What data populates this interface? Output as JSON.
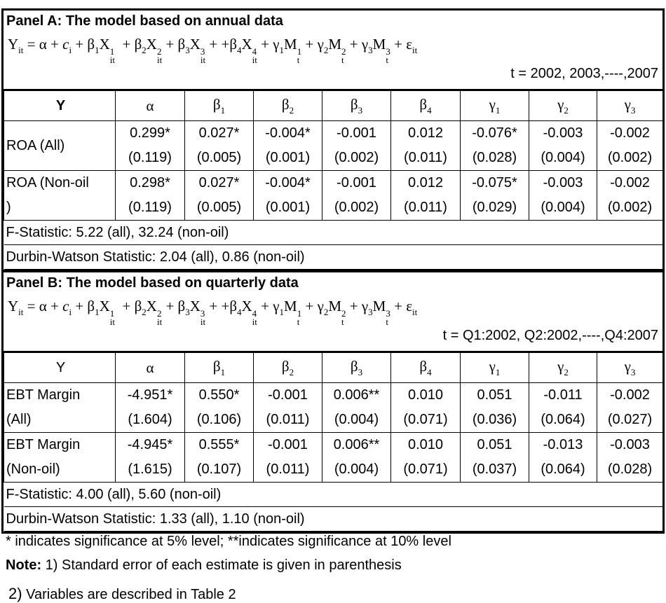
{
  "panels": [
    {
      "title": "Panel A: The model based on annual data",
      "equation": [
        {
          "base": "Y",
          "sub": "it"
        },
        {
          "base": " = α + "
        },
        {
          "base": "c",
          "sub": "i"
        },
        {
          "base": " + "
        },
        {
          "base": "β",
          "sub": "1"
        },
        {
          "base": "X",
          "sup": "1",
          "sub": "it"
        },
        {
          "base": "  + "
        },
        {
          "base": "β",
          "sub": "2"
        },
        {
          "base": "X",
          "sup": "2",
          "sub": "it"
        },
        {
          "base": " + "
        },
        {
          "base": "β",
          "sub": "3"
        },
        {
          "base": "X",
          "sup": "3",
          "sub": "it"
        },
        {
          "base": " + +"
        },
        {
          "base": "β",
          "sub": "4"
        },
        {
          "base": "X",
          "sup": "4",
          "sub": "it"
        },
        {
          "base": " + "
        },
        {
          "base": "γ",
          "sub": "1"
        },
        {
          "base": "M",
          "sup": "1",
          "sub": "t"
        },
        {
          "base": " + "
        },
        {
          "base": "γ",
          "sub": "2"
        },
        {
          "base": "M",
          "sup": "2",
          "sub": "t"
        },
        {
          "base": " + "
        },
        {
          "base": "γ",
          "sub": "3"
        },
        {
          "base": "M",
          "sup": "3",
          "sub": "t"
        },
        {
          "base": " + "
        },
        {
          "base": "ε",
          "sub": "it"
        }
      ],
      "period": "t = 2002, 2003,----,2007",
      "header": [
        {
          "base": "Y"
        },
        {
          "base": "α"
        },
        {
          "base": "β",
          "sub": "1"
        },
        {
          "base": "β",
          "sub": "2"
        },
        {
          "base": "β",
          "sub": "3"
        },
        {
          "base": "β",
          "sub": "4"
        },
        {
          "base": "γ",
          "sub": "1"
        },
        {
          "base": "γ",
          "sub": "2"
        },
        {
          "base": "γ",
          "sub": "3"
        }
      ],
      "rows": [
        {
          "label": [
            "ROA (All)"
          ],
          "estimates": [
            "0.299*",
            "0.027*",
            "-0.004*",
            "-0.001",
            "0.012",
            "-0.076*",
            "-0.003",
            "-0.002"
          ],
          "std_errors": [
            "(0.119)",
            "(0.005)",
            "(0.001)",
            "(0.002)",
            "(0.011)",
            "(0.028)",
            "(0.004)",
            "(0.002)"
          ]
        },
        {
          "label": [
            "ROA (Non-oil",
            ")"
          ],
          "estimates": [
            "0.298*",
            "0.027*",
            "-0.004*",
            "-0.001",
            "0.012",
            "-0.075*",
            "-0.003",
            "-0.002"
          ],
          "std_errors": [
            "(0.119)",
            "(0.005)",
            "(0.001)",
            "(0.002)",
            "(0.011)",
            "(0.029)",
            "(0.004)",
            "(0.002)"
          ]
        }
      ],
      "stats": [
        "F-Statistic: 5.22 (all), 32.24 (non-oil)",
        "Durbin-Watson Statistic: 2.04 (all), 0.86 (non-oil)"
      ]
    },
    {
      "title": "Panel B: The model based on quarterly data",
      "equation": [
        {
          "base": "Y",
          "sub": "it"
        },
        {
          "base": " = α + "
        },
        {
          "base": "c",
          "sub": "i"
        },
        {
          "base": " + "
        },
        {
          "base": "β",
          "sub": "1"
        },
        {
          "base": "X",
          "sup": "1",
          "sub": "it"
        },
        {
          "base": "  + "
        },
        {
          "base": "β",
          "sub": "2"
        },
        {
          "base": "X",
          "sup": "2",
          "sub": "it"
        },
        {
          "base": " + "
        },
        {
          "base": "β",
          "sub": "3"
        },
        {
          "base": "X",
          "sup": "3",
          "sub": "it"
        },
        {
          "base": " + +"
        },
        {
          "base": "β",
          "sub": "4"
        },
        {
          "base": "X",
          "sup": "4",
          "sub": "it"
        },
        {
          "base": " + "
        },
        {
          "base": "γ",
          "sub": "1"
        },
        {
          "base": "M",
          "sup": "1",
          "sub": "t"
        },
        {
          "base": " + "
        },
        {
          "base": "γ",
          "sub": "2"
        },
        {
          "base": "M",
          "sup": "2",
          "sub": "t"
        },
        {
          "base": " + "
        },
        {
          "base": "γ",
          "sub": "3"
        },
        {
          "base": "M",
          "sup": "3",
          "sub": "t"
        },
        {
          "base": " + "
        },
        {
          "base": "ε",
          "sub": "it"
        }
      ],
      "period": "t = Q1:2002, Q2:2002,----,Q4:2007",
      "header": [
        {
          "base": "Y"
        },
        {
          "base": "α"
        },
        {
          "base": "β",
          "sub": "1"
        },
        {
          "base": "β",
          "sub": "2"
        },
        {
          "base": "β",
          "sub": "3"
        },
        {
          "base": "β",
          "sub": "4"
        },
        {
          "base": "γ",
          "sub": "1"
        },
        {
          "base": "γ",
          "sub": "2"
        },
        {
          "base": "γ",
          "sub": "3"
        }
      ],
      "rows": [
        {
          "label": [
            "EBT Margin",
            "(All)"
          ],
          "estimates": [
            "-4.951*",
            "0.550*",
            "-0.001",
            "0.006**",
            "0.010",
            "0.051",
            "-0.011",
            "-0.002"
          ],
          "std_errors": [
            "(1.604)",
            "(0.106)",
            "(0.011)",
            "(0.004)",
            "(0.071)",
            "(0.036)",
            "(0.064)",
            "(0.027)"
          ]
        },
        {
          "label": [
            "EBT Margin",
            "(Non-oil)"
          ],
          "estimates": [
            "-4.945*",
            "0.555*",
            "-0.001",
            "0.006**",
            "0.010",
            "0.051",
            "-0.013",
            "-0.003"
          ],
          "std_errors": [
            "(1.615)",
            "(0.107)",
            "(0.011)",
            "(0.004)",
            "(0.071)",
            "(0.037)",
            "(0.064)",
            "(0.028)"
          ]
        }
      ],
      "stats": [
        "F-Statistic: 4.00 (all), 5.60 (non-oil)",
        "Durbin-Watson Statistic: 1.33 (all), 1.10 (non-oil)"
      ]
    }
  ],
  "footnotes": {
    "significance": "* indicates significance at 5% level; **indicates significance at 10% level",
    "note_label": "Note:",
    "note_1": "1) Standard error of each estimate is given in parenthesis",
    "note_2_number": "2)",
    "note_2": "Variables are described in Table 2"
  }
}
